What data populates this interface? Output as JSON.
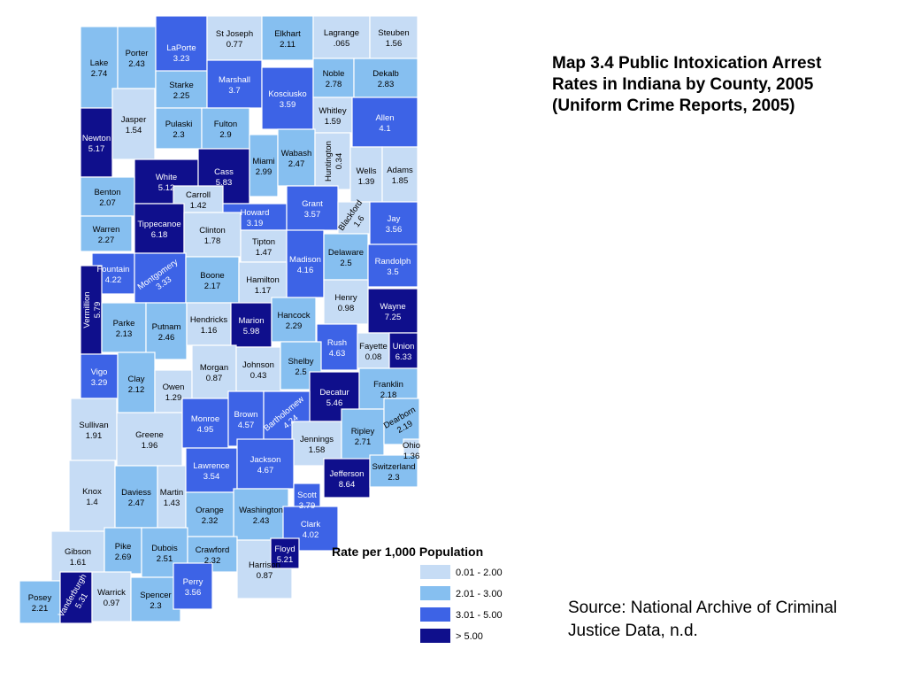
{
  "title": "Map 3.4 Public Intoxication Arrest Rates in Indiana by County, 2005 (Uniform Crime Reports, 2005)",
  "source": "Source: National Archive of Criminal Justice Data, n.d.",
  "legend": {
    "title": "Rate per 1,000 Population",
    "classes": [
      {
        "label": "0.01 - 2.00",
        "color": "#c6dcf5"
      },
      {
        "label": "2.01 - 3.00",
        "color": "#86bff0"
      },
      {
        "label": "3.01 - 5.00",
        "color": "#3d63e6"
      },
      {
        "label": "> 5.00",
        "color": "#0f0f8c"
      }
    ]
  },
  "counties": [
    {
      "name": "Lake",
      "value": "2.74",
      "cls": 1
    },
    {
      "name": "Porter",
      "value": "2.43",
      "cls": 1
    },
    {
      "name": "LaPorte",
      "value": "3.23",
      "cls": 2
    },
    {
      "name": "St Joseph",
      "value": "0.77",
      "cls": 0
    },
    {
      "name": "Elkhart",
      "value": "2.11",
      "cls": 1
    },
    {
      "name": "Lagrange",
      "value": ".065",
      "cls": 0
    },
    {
      "name": "Steuben",
      "value": "1.56",
      "cls": 0
    },
    {
      "name": "Newton",
      "value": "5.17",
      "cls": 3
    },
    {
      "name": "Jasper",
      "value": "1.54",
      "cls": 0
    },
    {
      "name": "Starke",
      "value": "2.25",
      "cls": 1
    },
    {
      "name": "Marshall",
      "value": "3.7",
      "cls": 2
    },
    {
      "name": "Kosciusko",
      "value": "3.59",
      "cls": 2
    },
    {
      "name": "Noble",
      "value": "2.78",
      "cls": 1
    },
    {
      "name": "Dekalb",
      "value": "2.83",
      "cls": 1
    },
    {
      "name": "Pulaski",
      "value": "2.3",
      "cls": 1
    },
    {
      "name": "Fulton",
      "value": "2.9",
      "cls": 1
    },
    {
      "name": "Whitley",
      "value": "1.59",
      "cls": 0
    },
    {
      "name": "Allen",
      "value": "4.1",
      "cls": 2
    },
    {
      "name": "White",
      "value": "5.12",
      "cls": 3
    },
    {
      "name": "Cass",
      "value": "5.83",
      "cls": 3
    },
    {
      "name": "Miami",
      "value": "2.99",
      "cls": 1
    },
    {
      "name": "Wabash",
      "value": "2.47",
      "cls": 1
    },
    {
      "name": "Huntington",
      "value": "0.34",
      "cls": 0
    },
    {
      "name": "Wells",
      "value": "1.39",
      "cls": 0
    },
    {
      "name": "Adams",
      "value": "1.85",
      "cls": 0
    },
    {
      "name": "Benton",
      "value": "2.07",
      "cls": 1
    },
    {
      "name": "Carroll",
      "value": "1.42",
      "cls": 0
    },
    {
      "name": "Howard",
      "value": "3.19",
      "cls": 2
    },
    {
      "name": "Grant",
      "value": "3.57",
      "cls": 2
    },
    {
      "name": "Blackford",
      "value": "1.6",
      "cls": 0
    },
    {
      "name": "Jay",
      "value": "3.56",
      "cls": 2
    },
    {
      "name": "Warren",
      "value": "2.27",
      "cls": 1
    },
    {
      "name": "Tippecanoe",
      "value": "6.18",
      "cls": 3
    },
    {
      "name": "Clinton",
      "value": "1.78",
      "cls": 0
    },
    {
      "name": "Tipton",
      "value": "1.47",
      "cls": 0
    },
    {
      "name": "Madison",
      "value": "4.16",
      "cls": 2
    },
    {
      "name": "Delaware",
      "value": "2.5",
      "cls": 1
    },
    {
      "name": "Randolph",
      "value": "3.5",
      "cls": 2
    },
    {
      "name": "Fountain",
      "value": "4.22",
      "cls": 2
    },
    {
      "name": "Montgomery",
      "value": "3.33",
      "cls": 2
    },
    {
      "name": "Boone",
      "value": "2.17",
      "cls": 1
    },
    {
      "name": "Hamilton",
      "value": "1.17",
      "cls": 0
    },
    {
      "name": "Henry",
      "value": "0.98",
      "cls": 0
    },
    {
      "name": "Wayne",
      "value": "7.25",
      "cls": 3
    },
    {
      "name": "Vermillion",
      "value": "5.79",
      "cls": 3
    },
    {
      "name": "Parke",
      "value": "2.13",
      "cls": 1
    },
    {
      "name": "Putnam",
      "value": "2.46",
      "cls": 1
    },
    {
      "name": "Hendricks",
      "value": "1.16",
      "cls": 0
    },
    {
      "name": "Marion",
      "value": "5.98",
      "cls": 3
    },
    {
      "name": "Hancock",
      "value": "2.29",
      "cls": 1
    },
    {
      "name": "Rush",
      "value": "4.63",
      "cls": 2
    },
    {
      "name": "Fayette",
      "value": "0.08",
      "cls": 0
    },
    {
      "name": "Union",
      "value": "6.33",
      "cls": 3
    },
    {
      "name": "Vigo",
      "value": "3.29",
      "cls": 2
    },
    {
      "name": "Clay",
      "value": "2.12",
      "cls": 1
    },
    {
      "name": "Owen",
      "value": "1.29",
      "cls": 0
    },
    {
      "name": "Morgan",
      "value": "0.87",
      "cls": 0
    },
    {
      "name": "Johnson",
      "value": "0.43",
      "cls": 0
    },
    {
      "name": "Shelby",
      "value": "2.5",
      "cls": 1
    },
    {
      "name": "Decatur",
      "value": "5.46",
      "cls": 3
    },
    {
      "name": "Franklin",
      "value": "2.18",
      "cls": 1
    },
    {
      "name": "Sullivan",
      "value": "1.91",
      "cls": 0
    },
    {
      "name": "Greene",
      "value": "1.96",
      "cls": 0
    },
    {
      "name": "Monroe",
      "value": "4.95",
      "cls": 2
    },
    {
      "name": "Brown",
      "value": "4.57",
      "cls": 2
    },
    {
      "name": "Bartholomew",
      "value": "4.24",
      "cls": 2
    },
    {
      "name": "Jennings",
      "value": "1.58",
      "cls": 0
    },
    {
      "name": "Ripley",
      "value": "2.71",
      "cls": 1
    },
    {
      "name": "Dearborn",
      "value": "2.19",
      "cls": 1
    },
    {
      "name": "Ohio",
      "value": "1.36",
      "cls": 0
    },
    {
      "name": "Knox",
      "value": "1.4",
      "cls": 0
    },
    {
      "name": "Daviess",
      "value": "2.47",
      "cls": 1
    },
    {
      "name": "Martin",
      "value": "1.43",
      "cls": 0
    },
    {
      "name": "Lawrence",
      "value": "3.54",
      "cls": 2
    },
    {
      "name": "Jackson",
      "value": "4.67",
      "cls": 2
    },
    {
      "name": "Jefferson",
      "value": "8.64",
      "cls": 3
    },
    {
      "name": "Switzerland",
      "value": "2.3",
      "cls": 1
    },
    {
      "name": "Scott",
      "value": "3.79",
      "cls": 2
    },
    {
      "name": "Washington",
      "value": "2.43",
      "cls": 1
    },
    {
      "name": "Orange",
      "value": "2.32",
      "cls": 1
    },
    {
      "name": "Gibson",
      "value": "1.61",
      "cls": 0
    },
    {
      "name": "Pike",
      "value": "2.69",
      "cls": 1
    },
    {
      "name": "Dubois",
      "value": "2.51",
      "cls": 1
    },
    {
      "name": "Crawford",
      "value": "2.32",
      "cls": 1
    },
    {
      "name": "Clark",
      "value": "4.02",
      "cls": 2
    },
    {
      "name": "Posey",
      "value": "2.21",
      "cls": 1
    },
    {
      "name": "Vanderburgh",
      "value": "5.31",
      "cls": 3
    },
    {
      "name": "Warrick",
      "value": "0.97",
      "cls": 0
    },
    {
      "name": "Spencer",
      "value": "2.3",
      "cls": 1
    },
    {
      "name": "Perry",
      "value": "3.56",
      "cls": 2
    },
    {
      "name": "Harrison",
      "value": "0.87",
      "cls": 0
    },
    {
      "name": "Floyd",
      "value": "5.21",
      "cls": 3
    }
  ]
}
